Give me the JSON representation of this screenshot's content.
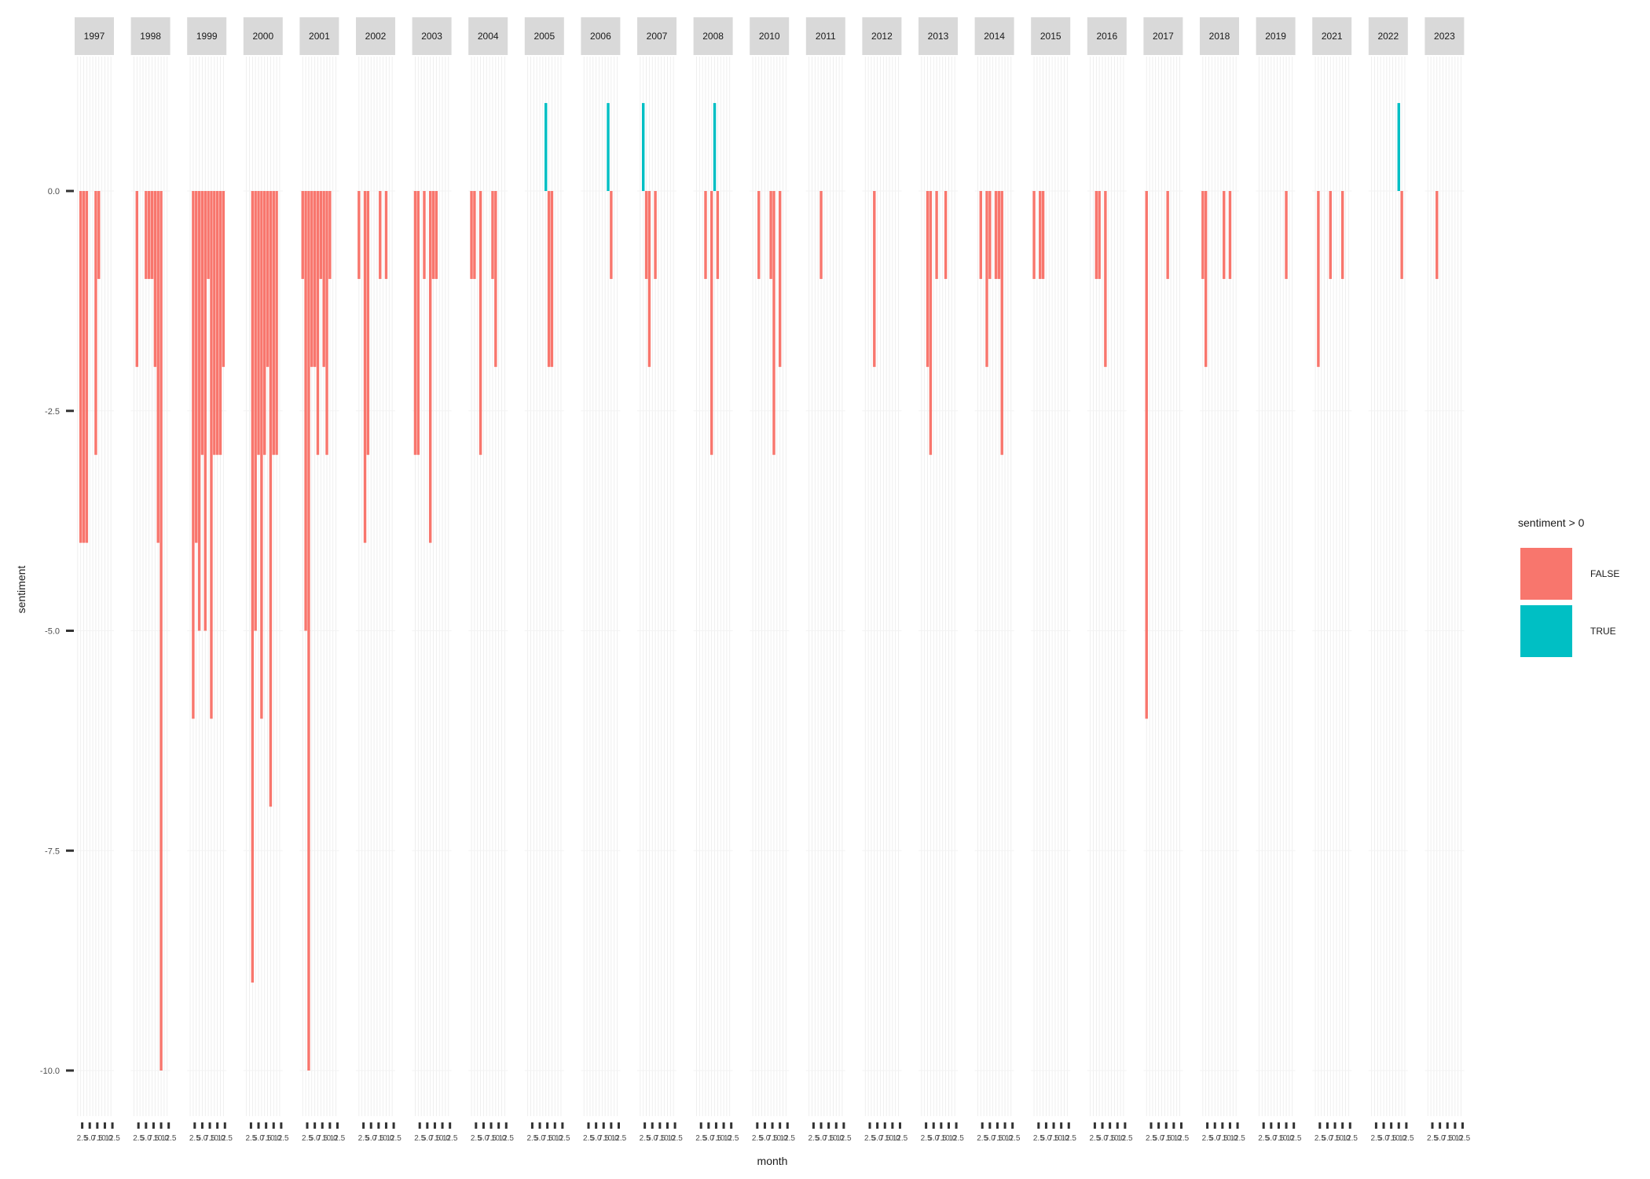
{
  "chart_data": {
    "type": "bar",
    "title": "",
    "xlabel": "month",
    "ylabel": "sentiment",
    "ylim": [
      -10.4,
      1.2
    ],
    "yticks": [
      0,
      -2.5,
      -5,
      -7.5,
      -10
    ],
    "ytick_labels": [
      "0.0",
      "-2.5",
      "-5.0",
      "-7.5",
      "-10.0"
    ],
    "xlim": [
      0,
      13
    ],
    "xticks": [
      2.5,
      5,
      7.5,
      10,
      12.5
    ],
    "xtick_labels": [
      "2.5",
      "5.0",
      "7.5",
      "10.0",
      "12.5"
    ],
    "grid": true,
    "facet_by": "year",
    "legend": {
      "title": "sentiment > 0",
      "position": "right",
      "entries": [
        {
          "label": "FALSE",
          "color": "#F8766D"
        },
        {
          "label": "TRUE",
          "color": "#00BFC4"
        }
      ]
    },
    "colors": {
      "negative": "#F8766D",
      "positive": "#00BFC4",
      "strip": "#d9d9d9",
      "grid": "#ebebeb"
    },
    "panels": [
      {
        "year": "1997",
        "months": [
          2,
          3,
          4,
          7,
          8
        ],
        "values": [
          -4,
          -4,
          -4,
          -3,
          -1
        ]
      },
      {
        "year": "1998",
        "months": [
          2,
          5,
          6,
          7,
          8,
          9,
          10
        ],
        "values": [
          -2,
          -1,
          -1,
          -1,
          -2,
          -4,
          -10
        ]
      },
      {
        "year": "1999",
        "months": [
          2,
          3,
          4,
          5,
          6,
          7,
          8,
          9,
          10,
          11,
          12
        ],
        "values": [
          -6,
          -4,
          -5,
          -3,
          -5,
          -1,
          -6,
          -3,
          -3,
          -3,
          -2
        ]
      },
      {
        "year": "2000",
        "months": [
          3,
          4,
          5,
          6,
          7,
          8,
          9,
          10,
          11
        ],
        "values": [
          -9,
          -5,
          -3,
          -6,
          -3,
          -2,
          -7,
          -3,
          -3
        ]
      },
      {
        "year": "2001",
        "months": [
          1,
          2,
          3,
          4,
          5,
          6,
          7,
          8,
          9,
          10
        ],
        "values": [
          -1,
          -5,
          -10,
          -2,
          -2,
          -3,
          -1,
          -2,
          -3,
          -1
        ]
      },
      {
        "year": "2002",
        "months": [
          1,
          3,
          4,
          8,
          10
        ],
        "values": [
          -1,
          -4,
          -3,
          -1,
          -1
        ]
      },
      {
        "year": "2003",
        "months": [
          1,
          2,
          4,
          6,
          7,
          8
        ],
        "values": [
          -3,
          -3,
          -1,
          -4,
          -1,
          -1
        ]
      },
      {
        "year": "2004",
        "months": [
          1,
          2,
          4,
          8,
          9
        ],
        "values": [
          -1,
          -1,
          -3,
          -1,
          -2
        ]
      },
      {
        "year": "2005",
        "months": [
          7,
          8,
          9
        ],
        "values": [
          1,
          -2,
          -2
        ]
      },
      {
        "year": "2006",
        "months": [
          9,
          10
        ],
        "values": [
          1,
          -1
        ]
      },
      {
        "year": "2007",
        "months": [
          2,
          3,
          4,
          6
        ],
        "values": [
          1,
          -1,
          -2,
          -1
        ]
      },
      {
        "year": "2008",
        "months": [
          4,
          6,
          7,
          8
        ],
        "values": [
          -1,
          -3,
          1,
          -1
        ]
      },
      {
        "year": "2010",
        "months": [
          3,
          7,
          8,
          10
        ],
        "values": [
          -1,
          -1,
          -3,
          -2
        ]
      },
      {
        "year": "2011",
        "months": [
          5
        ],
        "values": [
          -1
        ]
      },
      {
        "year": "2012",
        "months": [
          4
        ],
        "values": [
          -2
        ]
      },
      {
        "year": "2013",
        "months": [
          3,
          4,
          6,
          9
        ],
        "values": [
          -2,
          -3,
          -1,
          -1
        ]
      },
      {
        "year": "2014",
        "months": [
          2,
          4,
          5,
          7,
          8,
          9
        ],
        "values": [
          -1,
          -2,
          -1,
          -1,
          -1,
          -3
        ]
      },
      {
        "year": "2015",
        "months": [
          1,
          3,
          4
        ],
        "values": [
          -1,
          -1,
          -1
        ]
      },
      {
        "year": "2016",
        "months": [
          3,
          4,
          6
        ],
        "values": [
          -1,
          -1,
          -2
        ]
      },
      {
        "year": "2017",
        "months": [
          1,
          8
        ],
        "values": [
          -6,
          -1
        ]
      },
      {
        "year": "2018",
        "months": [
          1,
          2,
          8,
          10
        ],
        "values": [
          -1,
          -2,
          -1,
          -1
        ]
      },
      {
        "year": "2019",
        "months": [
          10
        ],
        "values": [
          -1
        ]
      },
      {
        "year": "2021",
        "months": [
          2,
          6,
          10
        ],
        "values": [
          -2,
          -1,
          -1
        ]
      },
      {
        "year": "2022",
        "months": [
          10,
          11
        ],
        "values": [
          1,
          -1
        ]
      },
      {
        "year": "2023",
        "months": [
          4
        ],
        "values": [
          -1
        ]
      }
    ]
  }
}
